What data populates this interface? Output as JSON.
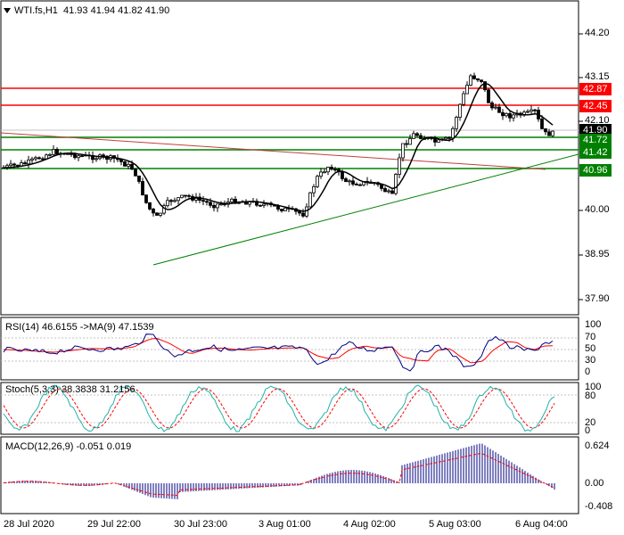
{
  "chart": {
    "symbol": "WTI.fs,H1",
    "ohlc": "41.93 41.94 41.82 41.90",
    "price_ticks": [
      "44.20",
      "43.15",
      "42.10",
      "40.00",
      "38.95",
      "37.90"
    ],
    "level_tags": [
      {
        "label": "42.87",
        "color": "#ff0000"
      },
      {
        "label": "42.45",
        "color": "#ff0000"
      },
      {
        "label": "41.90",
        "color": "#000000"
      },
      {
        "label": "41.72",
        "color": "#008000"
      },
      {
        "label": "41.42",
        "color": "#008000"
      },
      {
        "label": "40.96",
        "color": "#008000"
      }
    ],
    "date_labels": [
      "28 Jul 2020",
      "29 Jul 22:00",
      "30 Jul 23:00",
      "3 Aug 01:00",
      "4 Aug 02:00",
      "5 Aug 03:00",
      "6 Aug 04:00"
    ]
  },
  "rsi": {
    "label": "RSI(14) 46.6155 ->MA(9) 47.1539",
    "ticks": [
      "100",
      "70",
      "50",
      "30",
      "0"
    ]
  },
  "stoch": {
    "label": "Stoch(5,3,3) 38.3838 31.2156",
    "ticks": [
      "100",
      "80",
      "20",
      "0"
    ]
  },
  "macd": {
    "label": "MACD(12,26,9) -0.051 0.019",
    "ticks": [
      "0.624",
      "0.00",
      "-0.408"
    ]
  },
  "colors": {
    "resistance": "#ff0000",
    "support": "#008000",
    "ma": "#000000",
    "candle": "#000000",
    "trendline": "#008000",
    "rsi_line": "#000080",
    "rsi_ma": "#ff0000",
    "stoch_main": "#20b2aa",
    "stoch_signal": "#ff0000",
    "macd_hist": "#000080",
    "macd_signal": "#ff0000"
  }
}
